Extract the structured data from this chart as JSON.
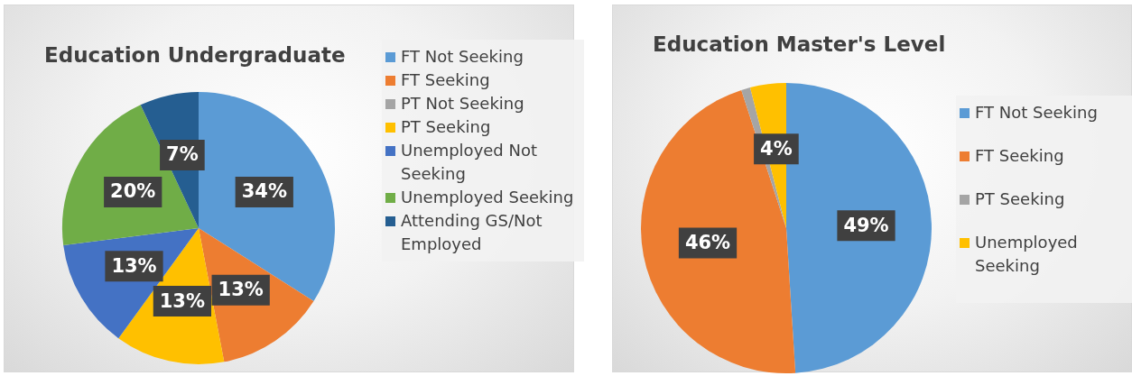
{
  "chart_data": [
    {
      "type": "pie",
      "title": "Education Undergraduate",
      "categories": [
        "FT Not Seeking",
        "FT Seeking",
        "PT Not Seeking",
        "PT Seeking",
        "Unemployed Not Seeking",
        "Unemployed Seeking",
        "Attending GS/Not Employed"
      ],
      "values": [
        34,
        13,
        0,
        13,
        13,
        20,
        7
      ],
      "colors": [
        "#5b9bd5",
        "#ed7d31",
        "#a5a5a5",
        "#ffc000",
        "#4472c4",
        "#70ad47",
        "#255e91"
      ],
      "value_labels": [
        "34%",
        "13%",
        null,
        "13%",
        "13%",
        "20%",
        "7%"
      ],
      "legend": "right"
    },
    {
      "type": "pie",
      "title": "Education Master's Level",
      "categories": [
        "FT Not Seeking",
        "FT Seeking",
        "PT Seeking",
        "Unemployed Seeking"
      ],
      "values": [
        49,
        46,
        1,
        4
      ],
      "colors": [
        "#5b9bd5",
        "#ed7d31",
        "#a5a5a5",
        "#ffc000"
      ],
      "value_labels": [
        "49%",
        "46%",
        null,
        "4%"
      ],
      "legend": "right"
    }
  ]
}
